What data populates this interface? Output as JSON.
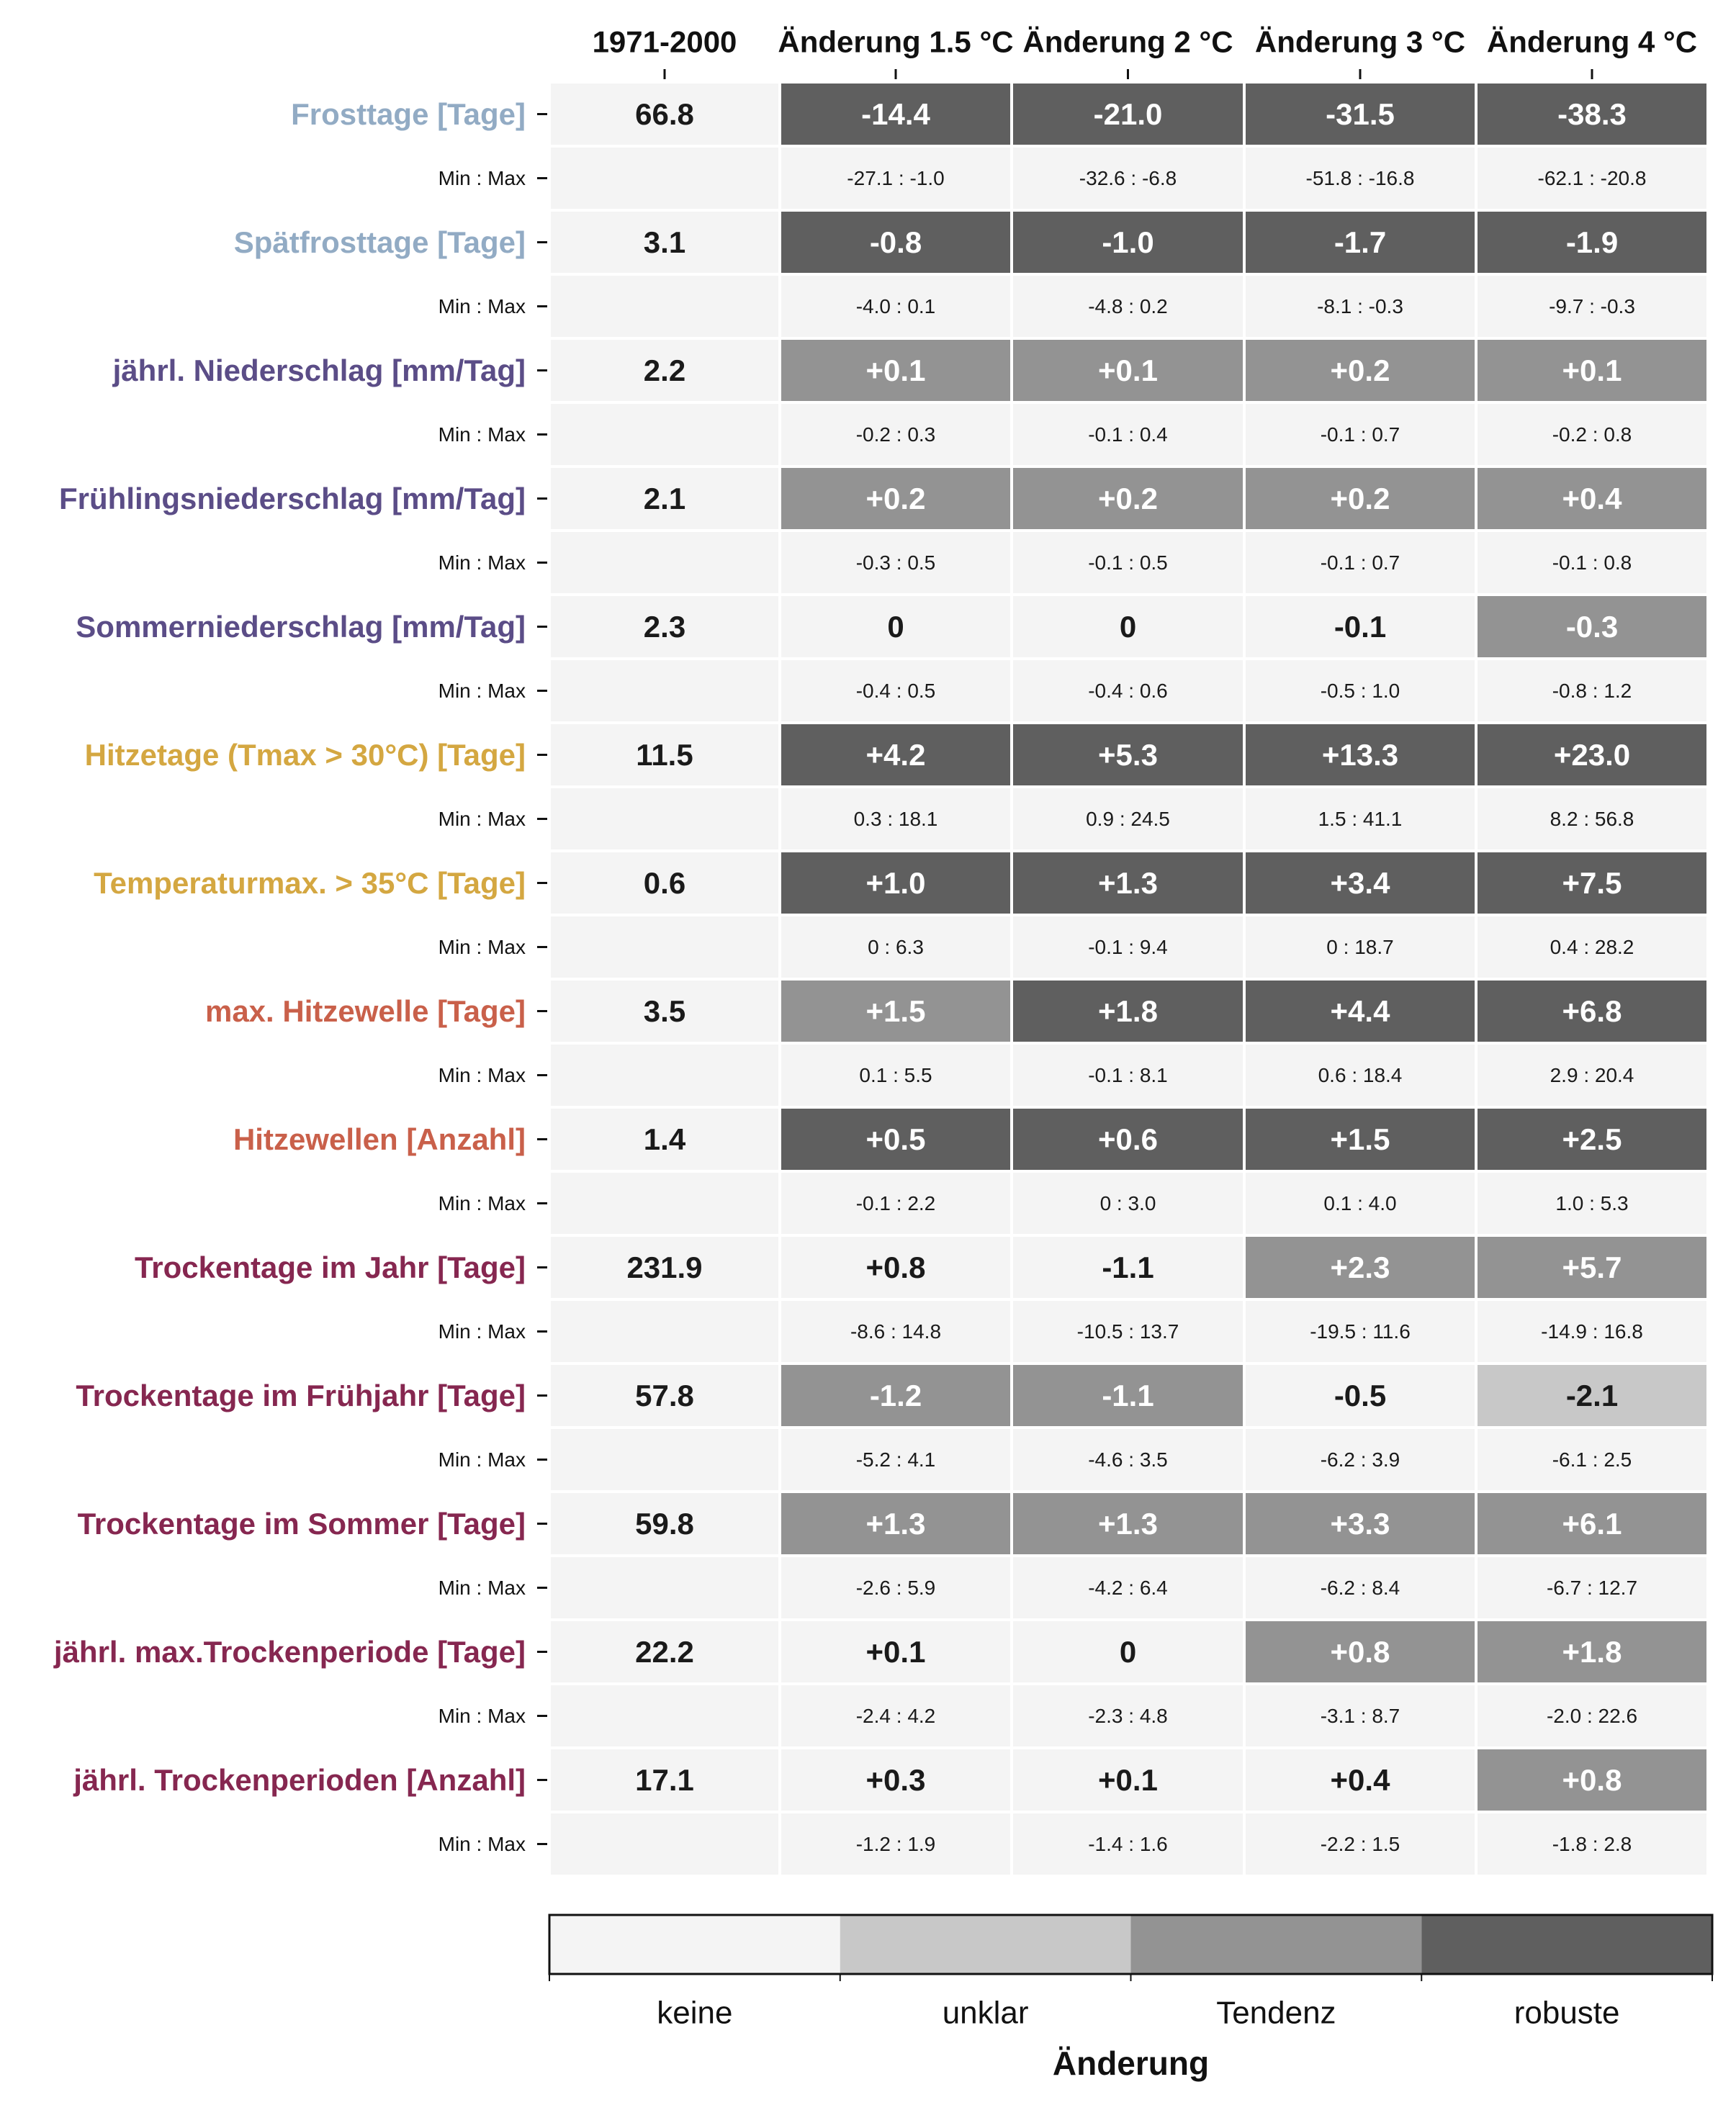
{
  "chart_data": {
    "type": "table",
    "columns": [
      "1971-2000",
      "Änderung 1.5 °C",
      "Änderung 2 °C",
      "Änderung 3 °C",
      "Änderung 4 °C"
    ],
    "minmax_label": "Min : Max",
    "rows": [
      {
        "label": "Frosttage [Tage]",
        "color": "#92abc4",
        "base": "66.8",
        "values": [
          "-14.4",
          "-21.0",
          "-31.5",
          "-38.3"
        ],
        "levels": [
          3,
          3,
          3,
          3
        ],
        "ranges": [
          "-27.1 : -1.0",
          "-32.6 : -6.8",
          "-51.8 : -16.8",
          "-62.1 : -20.8"
        ]
      },
      {
        "label": "Spätfrosttage [Tage]",
        "color": "#92abc4",
        "base": "3.1",
        "values": [
          "-0.8",
          "-1.0",
          "-1.7",
          "-1.9"
        ],
        "levels": [
          3,
          3,
          3,
          3
        ],
        "ranges": [
          "-4.0 : 0.1",
          "-4.8 : 0.2",
          "-8.1 : -0.3",
          "-9.7 : -0.3"
        ]
      },
      {
        "label": "jährl. Niederschlag [mm/Tag]",
        "color": "#5b4d87",
        "base": "2.2",
        "values": [
          "+0.1",
          "+0.1",
          "+0.2",
          "+0.1"
        ],
        "levels": [
          2,
          2,
          2,
          2
        ],
        "ranges": [
          "-0.2 : 0.3",
          "-0.1 : 0.4",
          "-0.1 : 0.7",
          "-0.2 : 0.8"
        ]
      },
      {
        "label": "Frühlingsniederschlag [mm/Tag]",
        "color": "#5b4d87",
        "base": "2.1",
        "values": [
          "+0.2",
          "+0.2",
          "+0.2",
          "+0.4"
        ],
        "levels": [
          2,
          2,
          2,
          2
        ],
        "ranges": [
          "-0.3 : 0.5",
          "-0.1 : 0.5",
          "-0.1 : 0.7",
          "-0.1 : 0.8"
        ]
      },
      {
        "label": "Sommerniederschlag [mm/Tag]",
        "color": "#5b4d87",
        "base": "2.3",
        "values": [
          "0",
          "0",
          "-0.1",
          "-0.3"
        ],
        "levels": [
          0,
          0,
          0,
          2
        ],
        "ranges": [
          "-0.4 : 0.5",
          "-0.4 : 0.6",
          "-0.5 : 1.0",
          "-0.8 : 1.2"
        ]
      },
      {
        "label": "Hitzetage (Tmax > 30°C) [Tage]",
        "color": "#d4a741",
        "base": "11.5",
        "values": [
          "+4.2",
          "+5.3",
          "+13.3",
          "+23.0"
        ],
        "levels": [
          3,
          3,
          3,
          3
        ],
        "ranges": [
          "0.3 : 18.1",
          "0.9 : 24.5",
          "1.5 : 41.1",
          "8.2 : 56.8"
        ]
      },
      {
        "label": "Temperaturmax. > 35°C [Tage]",
        "color": "#d4a741",
        "base": "0.6",
        "values": [
          "+1.0",
          "+1.3",
          "+3.4",
          "+7.5"
        ],
        "levels": [
          3,
          3,
          3,
          3
        ],
        "ranges": [
          "0 : 6.3",
          "-0.1 : 9.4",
          "0 : 18.7",
          "0.4 : 28.2"
        ]
      },
      {
        "label": "max. Hitzewelle [Tage]",
        "color": "#c9604a",
        "base": "3.5",
        "values": [
          "+1.5",
          "+1.8",
          "+4.4",
          "+6.8"
        ],
        "levels": [
          2,
          3,
          3,
          3
        ],
        "ranges": [
          "0.1 : 5.5",
          "-0.1 : 8.1",
          "0.6 : 18.4",
          "2.9 : 20.4"
        ]
      },
      {
        "label": "Hitzewellen [Anzahl]",
        "color": "#c9604a",
        "base": "1.4",
        "values": [
          "+0.5",
          "+0.6",
          "+1.5",
          "+2.5"
        ],
        "levels": [
          3,
          3,
          3,
          3
        ],
        "ranges": [
          "-0.1 : 2.2",
          "0 : 3.0",
          "0.1 : 4.0",
          "1.0 : 5.3"
        ]
      },
      {
        "label": "Trockentage im Jahr [Tage]",
        "color": "#862750",
        "base": "231.9",
        "values": [
          "+0.8",
          "-1.1",
          "+2.3",
          "+5.7"
        ],
        "levels": [
          0,
          0,
          2,
          2
        ],
        "ranges": [
          "-8.6 : 14.8",
          "-10.5 : 13.7",
          "-19.5 : 11.6",
          "-14.9 : 16.8"
        ]
      },
      {
        "label": "Trockentage im Frühjahr [Tage]",
        "color": "#862750",
        "base": "57.8",
        "values": [
          "-1.2",
          "-1.1",
          "-0.5",
          "-2.1"
        ],
        "levels": [
          2,
          2,
          0,
          1
        ],
        "ranges": [
          "-5.2 : 4.1",
          "-4.6 : 3.5",
          "-6.2 : 3.9",
          "-6.1 : 2.5"
        ]
      },
      {
        "label": "Trockentage im Sommer [Tage]",
        "color": "#862750",
        "base": "59.8",
        "values": [
          "+1.3",
          "+1.3",
          "+3.3",
          "+6.1"
        ],
        "levels": [
          2,
          2,
          2,
          2
        ],
        "ranges": [
          "-2.6 : 5.9",
          "-4.2 : 6.4",
          "-6.2 : 8.4",
          "-6.7 : 12.7"
        ]
      },
      {
        "label": "jährl. max.Trockenperiode [Tage]",
        "color": "#862750",
        "base": "22.2",
        "values": [
          "+0.1",
          "0",
          "+0.8",
          "+1.8"
        ],
        "levels": [
          0,
          0,
          2,
          2
        ],
        "ranges": [
          "-2.4 : 4.2",
          "-2.3 : 4.8",
          "-3.1 : 8.7",
          "-2.0 : 22.6"
        ]
      },
      {
        "label": "jährl. Trockenperioden [Anzahl]",
        "color": "#862750",
        "base": "17.1",
        "values": [
          "+0.3",
          "+0.1",
          "+0.4",
          "+0.8"
        ],
        "levels": [
          0,
          0,
          0,
          2
        ],
        "ranges": [
          "-1.2 : 1.9",
          "-1.4 : 1.6",
          "-2.2 : 1.5",
          "-1.8 : 2.8"
        ]
      }
    ],
    "legend": {
      "title": "Änderung",
      "categories": [
        "keine",
        "unklar",
        "Tendenz",
        "robuste"
      ],
      "colors": [
        "#f4f4f4",
        "#c8c8c8",
        "#939393",
        "#5f5f5f"
      ]
    },
    "cell_colors": {
      "base": "#f4f4f4",
      "minmax": "#f4f4f4"
    },
    "text_colors": {
      "dark": "#1a1a1a",
      "light": "#ffffff"
    }
  }
}
